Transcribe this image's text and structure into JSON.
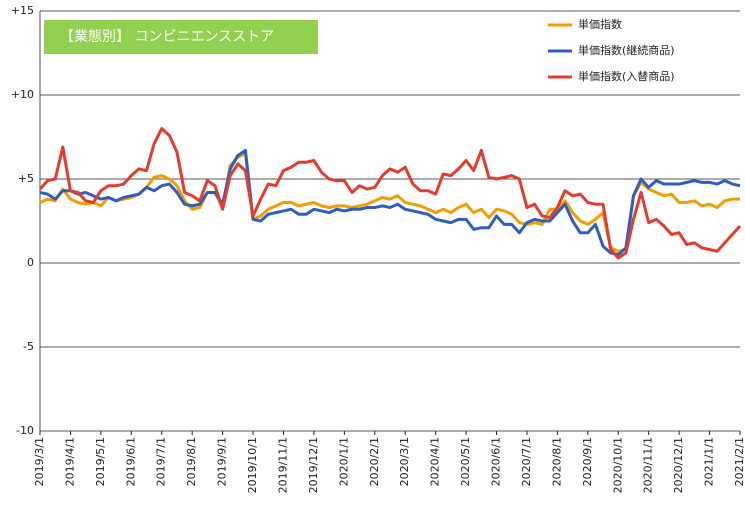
{
  "chart_data": {
    "type": "line",
    "title": "【業態別】 コンビニエンスストア",
    "categories": [
      "2019/3/1",
      null,
      null,
      null,
      "2019/4/1",
      null,
      null,
      null,
      "2019/5/1",
      null,
      null,
      null,
      "2019/6/1",
      null,
      null,
      null,
      "2019/7/1",
      null,
      null,
      null,
      "2019/8/1",
      null,
      null,
      null,
      "2019/9/1",
      null,
      null,
      null,
      "2019/10/1",
      null,
      null,
      null,
      "2019/11/1",
      null,
      null,
      null,
      "2019/12/1",
      null,
      null,
      null,
      "2020/1/1",
      null,
      null,
      null,
      "2020/2/1",
      null,
      null,
      null,
      "2020/3/1",
      null,
      null,
      null,
      "2020/4/1",
      null,
      null,
      null,
      "2020/5/1",
      null,
      null,
      null,
      "2020/6/1",
      null,
      null,
      null,
      "2020/7/1",
      null,
      null,
      null,
      "2020/8/1",
      null,
      null,
      null,
      "2020/9/1",
      null,
      null,
      null,
      "2020/10/1",
      null,
      null,
      null,
      "2020/11/1",
      null,
      null,
      null,
      "2020/12/1",
      null,
      null,
      null,
      "2021/1/1",
      null,
      null,
      null,
      "2021/2/1"
    ],
    "series": [
      {
        "name": "単価指数",
        "color": "#f59c00",
        "values": [
          3.6,
          3.8,
          3.7,
          4.4,
          3.8,
          3.6,
          3.5,
          3.6,
          3.4,
          3.9,
          3.7,
          3.8,
          3.9,
          4.1,
          4.5,
          5.1,
          5.2,
          5.0,
          4.6,
          3.7,
          3.2,
          3.3,
          4.2,
          4.2,
          3.3,
          5.8,
          6.3,
          6.5,
          2.6,
          2.8,
          3.2,
          3.4,
          3.6,
          3.6,
          3.4,
          3.5,
          3.6,
          3.4,
          3.3,
          3.4,
          3.4,
          3.3,
          3.4,
          3.5,
          3.7,
          3.9,
          3.8,
          4.0,
          3.6,
          3.5,
          3.4,
          3.2,
          3.0,
          3.2,
          3.0,
          3.3,
          3.5,
          3.0,
          3.2,
          2.7,
          3.2,
          3.1,
          2.9,
          2.4,
          2.3,
          2.4,
          2.3,
          3.2,
          3.2,
          3.7,
          3.0,
          2.5,
          2.3,
          2.6,
          3.0,
          0.9,
          0.7,
          0.8,
          4.0,
          4.8,
          4.4,
          4.2,
          4.0,
          4.1,
          3.6,
          3.6,
          3.7,
          3.4,
          3.5,
          3.3,
          3.7,
          3.8,
          3.8
        ]
      },
      {
        "name": "単価指数(継続商品)",
        "color": "#2e5fbf",
        "values": [
          4.2,
          4.1,
          3.8,
          4.3,
          4.3,
          4.1,
          4.2,
          4.0,
          3.8,
          3.9,
          3.7,
          3.9,
          4.0,
          4.1,
          4.5,
          4.3,
          4.6,
          4.7,
          4.2,
          3.5,
          3.4,
          3.5,
          4.2,
          4.2,
          3.5,
          5.6,
          6.4,
          6.7,
          2.6,
          2.5,
          2.9,
          3.0,
          3.1,
          3.2,
          2.9,
          2.9,
          3.2,
          3.1,
          3.0,
          3.2,
          3.1,
          3.2,
          3.2,
          3.3,
          3.3,
          3.4,
          3.3,
          3.5,
          3.2,
          3.1,
          3.0,
          2.9,
          2.6,
          2.5,
          2.4,
          2.6,
          2.6,
          2.0,
          2.1,
          2.1,
          2.8,
          2.3,
          2.3,
          1.8,
          2.4,
          2.6,
          2.5,
          2.5,
          3.0,
          3.5,
          2.5,
          1.8,
          1.8,
          2.3,
          1.0,
          0.6,
          0.5,
          0.9,
          4.0,
          5.0,
          4.5,
          4.9,
          4.7,
          4.7,
          4.7,
          4.8,
          4.9,
          4.8,
          4.8,
          4.7,
          4.9,
          4.7,
          4.6
        ]
      },
      {
        "name": "単価指数(入替商品)",
        "color": "#e33b2e",
        "values": [
          4.4,
          4.9,
          5.0,
          6.9,
          4.3,
          4.2,
          3.7,
          3.6,
          4.3,
          4.6,
          4.6,
          4.7,
          5.2,
          5.6,
          5.5,
          7.1,
          8.0,
          7.6,
          6.6,
          4.2,
          4.0,
          3.7,
          4.9,
          4.6,
          3.2,
          5.2,
          5.9,
          5.5,
          2.8,
          3.8,
          4.7,
          4.6,
          5.5,
          5.7,
          6.0,
          6.0,
          6.1,
          5.4,
          5.0,
          4.9,
          4.9,
          4.2,
          4.6,
          4.4,
          4.5,
          5.2,
          5.6,
          5.4,
          5.7,
          4.7,
          4.3,
          4.3,
          4.1,
          5.3,
          5.2,
          5.6,
          6.1,
          5.5,
          6.7,
          5.1,
          5.0,
          5.1,
          5.2,
          5.0,
          3.3,
          3.5,
          2.8,
          2.7,
          3.3,
          4.3,
          4.0,
          4.1,
          3.6,
          3.5,
          3.5,
          0.8,
          0.3,
          0.6,
          2.6,
          4.2,
          2.4,
          2.6,
          2.2,
          1.7,
          1.8,
          1.1,
          1.2,
          0.9,
          0.8,
          0.7,
          1.2,
          1.7,
          2.2
        ]
      }
    ],
    "ylim": [
      -10,
      15
    ],
    "yticks": [
      -10,
      -5,
      0,
      {
        "value": 5,
        "label": "+5"
      },
      {
        "value": 10,
        "label": "+10"
      },
      {
        "value": 15,
        "label": "+15"
      }
    ],
    "grid": true,
    "legend": "upper right"
  }
}
